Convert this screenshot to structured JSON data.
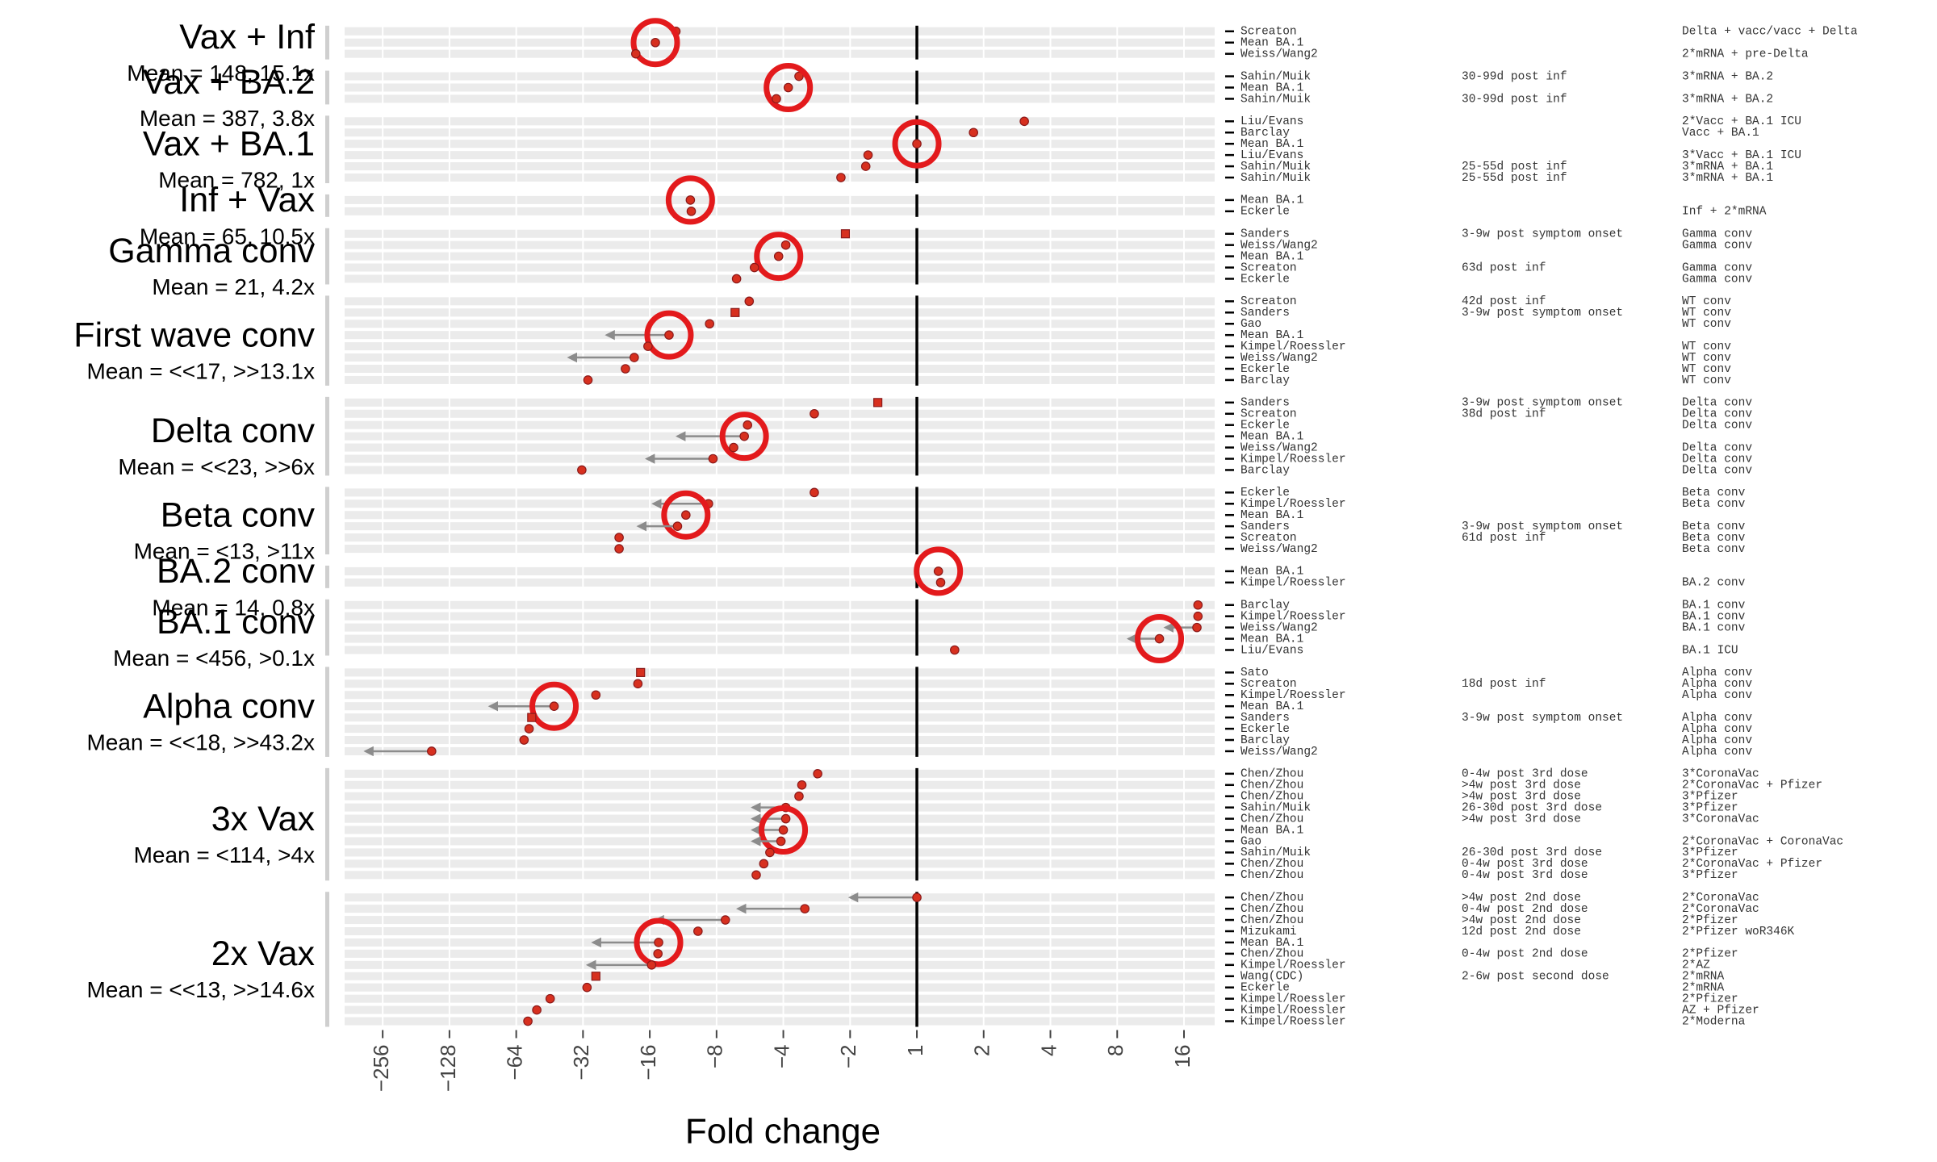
{
  "chart_data": {
    "type": "dotplot",
    "xlabel": "Fold change",
    "scale": "signed_log2",
    "xlim": [
      -380,
      22
    ],
    "xticks": [
      {
        "value": -256,
        "label": "−256"
      },
      {
        "value": -128,
        "label": "−128"
      },
      {
        "value": -64,
        "label": "−64"
      },
      {
        "value": -32,
        "label": "−32"
      },
      {
        "value": -16,
        "label": "−16"
      },
      {
        "value": -8,
        "label": "−8"
      },
      {
        "value": -4,
        "label": "−4"
      },
      {
        "value": -2,
        "label": "−2"
      },
      1,
      2,
      4,
      8,
      16
    ],
    "reference_line": 1,
    "colors": {
      "point": "#d7301f",
      "point_edge": "#8b1a1a",
      "mean_circle": "#e31a1c",
      "arrow": "#8c8c8c"
    },
    "groups": [
      {
        "label": "Vax + Inf",
        "mean_label": "Mean = 148, 15.1x",
        "rows": [
          {
            "study": "Screaton",
            "cohort": "Delta + vacc/vacc + Delta",
            "value": -12.2
          },
          {
            "study": "Mean BA.1",
            "value": -15.1,
            "mean": true
          },
          {
            "study": "Weiss/Wang2",
            "cohort": "2*mRNA + pre-Delta",
            "value": -18.5
          }
        ]
      },
      {
        "label": "Vax + BA.2",
        "mean_label": "Mean = 387, 3.8x",
        "rows": [
          {
            "study": "Sahin/Muik",
            "time": "30-99d post inf",
            "cohort": "3*mRNA + BA.2",
            "value": -3.4
          },
          {
            "study": "Mean BA.1",
            "value": -3.8,
            "mean": true
          },
          {
            "study": "Sahin/Muik",
            "time": "30-99d post inf",
            "cohort": "3*mRNA + BA.2",
            "value": -4.3
          }
        ]
      },
      {
        "label": "Vax + BA.1",
        "mean_label": "Mean = 782, 1x",
        "rows": [
          {
            "study": "Liu/Evans",
            "cohort": "2*Vacc + BA.1 ICU",
            "value": 3.05
          },
          {
            "study": "Barclay",
            "cohort": "Vacc + BA.1",
            "value": 1.8
          },
          {
            "study": "Mean BA.1",
            "value": 1,
            "mean": true
          },
          {
            "study": "Liu/Evans",
            "cohort": "3*Vacc + BA.1 ICU",
            "value": -1.66
          },
          {
            "study": "Sahin/Muik",
            "time": "25-55d post inf",
            "cohort": "3*mRNA + BA.1",
            "value": -1.7
          },
          {
            "study": "Sahin/Muik",
            "time": "25-55d post inf",
            "cohort": "3*mRNA + BA.1",
            "value": -2.2
          }
        ]
      },
      {
        "label": "Inf + Vax",
        "mean_label": "Mean = 65, 10.5x",
        "rows": [
          {
            "study": "Mean BA.1",
            "value": -10.5,
            "mean": true
          },
          {
            "study": "Eckerle",
            "cohort": "Inf + 2*mRNA",
            "value": -10.4
          }
        ]
      },
      {
        "label": "Gamma conv",
        "mean_label": "Mean = 21, 4.2x",
        "rows": [
          {
            "study": "Sanders",
            "time": "3-9w post symptom onset",
            "cohort": "Gamma conv",
            "value": -2.1,
            "marker": "square"
          },
          {
            "study": "Weiss/Wang2",
            "cohort": "Gamma conv",
            "value": -3.9
          },
          {
            "study": "Mean BA.1",
            "value": -4.2,
            "mean": true
          },
          {
            "study": "Screaton",
            "time": "63d post inf",
            "cohort": "Gamma conv",
            "value": -5.4
          },
          {
            "study": "Eckerle",
            "cohort": "Gamma conv",
            "value": -6.5
          }
        ]
      },
      {
        "label": "First wave conv",
        "mean_label": "Mean = <<17, >>13.1x",
        "rows": [
          {
            "study": "Screaton",
            "time": "42d post inf",
            "cohort": "WT conv",
            "value": -5.7
          },
          {
            "study": "Sanders",
            "time": "3-9w post symptom onset",
            "cohort": "WT conv",
            "value": -6.6,
            "marker": "square"
          },
          {
            "study": "Gao",
            "cohort": "WT conv",
            "value": -8.6
          },
          {
            "study": "Mean BA.1",
            "value": -13.1,
            "arrow_to": -25,
            "mean": true
          },
          {
            "study": "Kimpel/Roessler",
            "cohort": "WT conv",
            "value": -16.3
          },
          {
            "study": "Weiss/Wang2",
            "cohort": "WT conv",
            "value": -18.8,
            "arrow_to": -37
          },
          {
            "study": "Eckerle",
            "cohort": "WT conv",
            "value": -20.6
          },
          {
            "study": "Barclay",
            "cohort": "WT conv",
            "value": -30.4
          }
        ]
      },
      {
        "label": "Delta conv",
        "mean_label": "Mean = <<23, >>6x",
        "rows": [
          {
            "study": "Sanders",
            "time": "3-9w post symptom onset",
            "cohort": "Delta conv",
            "value": -1.5,
            "marker": "square"
          },
          {
            "study": "Screaton",
            "time": "38d post inf",
            "cohort": "Delta conv",
            "value": -2.9
          },
          {
            "study": "Eckerle",
            "cohort": "Delta conv",
            "value": -5.8
          },
          {
            "study": "Mean BA.1",
            "value": -6,
            "arrow_to": -12,
            "mean": true
          },
          {
            "study": "Weiss/Wang2",
            "cohort": "Delta conv",
            "value": -6.7
          },
          {
            "study": "Kimpel/Roessler",
            "cohort": "Delta conv",
            "value": -8.3,
            "arrow_to": -16.5
          },
          {
            "study": "Barclay",
            "cohort": "Delta conv",
            "value": -32.4
          }
        ]
      },
      {
        "label": "Beta conv",
        "mean_label": "Mean = <13, >11x",
        "rows": [
          {
            "study": "Eckerle",
            "cohort": "Beta conv",
            "value": -2.9
          },
          {
            "study": "Kimpel/Roessler",
            "cohort": "Beta conv",
            "value": -8.7,
            "arrow_to": -15.4
          },
          {
            "study": "Mean BA.1",
            "value": -11,
            "mean": true
          },
          {
            "study": "Sanders",
            "time": "3-9w post symptom onset",
            "cohort": "Beta conv",
            "value": -12,
            "arrow_to": -18
          },
          {
            "study": "Screaton",
            "time": "61d post inf",
            "cohort": "Beta conv",
            "value": -22
          },
          {
            "study": "Weiss/Wang2",
            "cohort": "Beta conv",
            "value": -22
          }
        ]
      },
      {
        "label": "BA.2 conv",
        "mean_label": "Mean = 14, 0.8x",
        "rows": [
          {
            "study": "Mean BA.1",
            "value": 1.25,
            "mean": true
          },
          {
            "study": "Kimpel/Roessler",
            "cohort": "BA.2 conv",
            "value": 1.28
          }
        ]
      },
      {
        "label": "BA.1 conv",
        "mean_label": "Mean = <456, >0.1x",
        "rows": [
          {
            "study": "Barclay",
            "cohort": "BA.1 conv",
            "value": 18.5
          },
          {
            "study": "Kimpel/Roessler",
            "cohort": "BA.1 conv",
            "value": 18.5
          },
          {
            "study": "Weiss/Wang2",
            "cohort": "BA.1 conv",
            "value": 18.3,
            "arrow_to": 13.2
          },
          {
            "study": "Mean BA.1",
            "value": 12.4,
            "arrow_to": 9,
            "mean": true
          },
          {
            "study": "Liu/Evans",
            "cohort": "BA.1 ICU",
            "value": 1.48
          }
        ]
      },
      {
        "label": "Alpha conv",
        "mean_label": "Mean = <<18, >>43.2x",
        "rows": [
          {
            "study": "Sato",
            "cohort": "Alpha conv",
            "value": -17.6,
            "marker": "square"
          },
          {
            "study": "Screaton",
            "time": "18d post inf",
            "cohort": "Alpha conv",
            "value": -18.1
          },
          {
            "study": "Kimpel/Roessler",
            "cohort": "Alpha conv",
            "value": -28
          },
          {
            "study": "Mean BA.1",
            "value": -43.2,
            "arrow_to": -84,
            "mean": true
          },
          {
            "study": "Sanders",
            "time": "3-9w post symptom onset",
            "cohort": "Alpha conv",
            "value": -54.5,
            "marker": "square"
          },
          {
            "study": "Eckerle",
            "cohort": "Alpha conv",
            "value": -56
          },
          {
            "study": "Barclay",
            "cohort": "Alpha conv",
            "value": -59
          },
          {
            "study": "Weiss/Wang2",
            "cohort": "Alpha conv",
            "value": -154,
            "arrow_to": -306
          }
        ]
      },
      {
        "label": "3x Vax",
        "mean_label": "Mean = <114, >4x",
        "rows": [
          {
            "study": "Chen/Zhou",
            "time": "0-4w post 3rd dose",
            "cohort": "3*CoronaVac",
            "value": -2.8
          },
          {
            "study": "Chen/Zhou",
            "time": ">4w post 3rd dose",
            "cohort": "2*CoronaVac + Pfizer",
            "value": -3.3
          },
          {
            "study": "Chen/Zhou",
            "time": ">4w post 3rd dose",
            "cohort": "3*Pfizer",
            "value": -3.4
          },
          {
            "study": "Sahin/Muik",
            "time": "26-30d post 3rd dose",
            "cohort": "3*Pfizer",
            "value": -3.9,
            "arrow_to": -5.5
          },
          {
            "study": "Chen/Zhou",
            "time": ">4w post 3rd dose",
            "cohort": "3*CoronaVac",
            "value": -3.9,
            "arrow_to": -5.5
          },
          {
            "study": "Mean BA.1",
            "value": -4,
            "arrow_to": -5.5,
            "mean": true
          },
          {
            "study": "Gao",
            "cohort": "2*CoronaVac + CoronaVac",
            "value": -4.1,
            "arrow_to": -5.5
          },
          {
            "study": "Sahin/Muik",
            "time": "26-30d post 3rd dose",
            "cohort": "3*Pfizer",
            "value": -4.6
          },
          {
            "study": "Chen/Zhou",
            "time": "0-4w post 3rd dose",
            "cohort": "2*CoronaVac + Pfizer",
            "value": -4.9
          },
          {
            "study": "Chen/Zhou",
            "time": "0-4w post 3rd dose",
            "cohort": "3*Pfizer",
            "value": -5.3
          }
        ]
      },
      {
        "label": "2x Vax",
        "mean_label": "Mean = <<13, >>14.6x",
        "rows": [
          {
            "study": "Chen/Zhou",
            "time": ">4w post 2nd dose",
            "cohort": "2*CoronaVac",
            "value": 1,
            "arrow_to": -2
          },
          {
            "study": "Chen/Zhou",
            "time": "0-4w post 2nd dose",
            "cohort": "2*CoronaVac",
            "value": -3.2,
            "arrow_to": -6.4
          },
          {
            "study": "Chen/Zhou",
            "time": ">4w post 2nd dose",
            "cohort": "2*Pfizer",
            "value": -7.3,
            "arrow_to": -15
          },
          {
            "study": "Mizukami",
            "time": "12d post 2nd dose",
            "cohort": "2*Pfizer woR346K",
            "value": -9.7
          },
          {
            "study": "Mean BA.1",
            "value": -14.6,
            "arrow_to": -28.8,
            "mean": true
          },
          {
            "study": "Chen/Zhou",
            "time": "0-4w post 2nd dose",
            "cohort": "2*Pfizer",
            "value": -14.7
          },
          {
            "study": "Kimpel/Roessler",
            "cohort": "2*AZ",
            "value": -15.7,
            "arrow_to": -30.4
          },
          {
            "study": "Wang(CDC)",
            "time": "2-6w post second dose",
            "cohort": "2*mRNA",
            "value": -28,
            "marker": "square"
          },
          {
            "study": "Eckerle",
            "cohort": "2*mRNA",
            "value": -30.7
          },
          {
            "study": "Kimpel/Roessler",
            "cohort": "2*Pfizer",
            "value": -45
          },
          {
            "study": "Kimpel/Roessler",
            "cohort": "AZ + Pfizer",
            "value": -51.7
          },
          {
            "study": "Kimpel/Roessler",
            "cohort": "2*Moderna",
            "value": -56.7
          }
        ]
      }
    ]
  }
}
